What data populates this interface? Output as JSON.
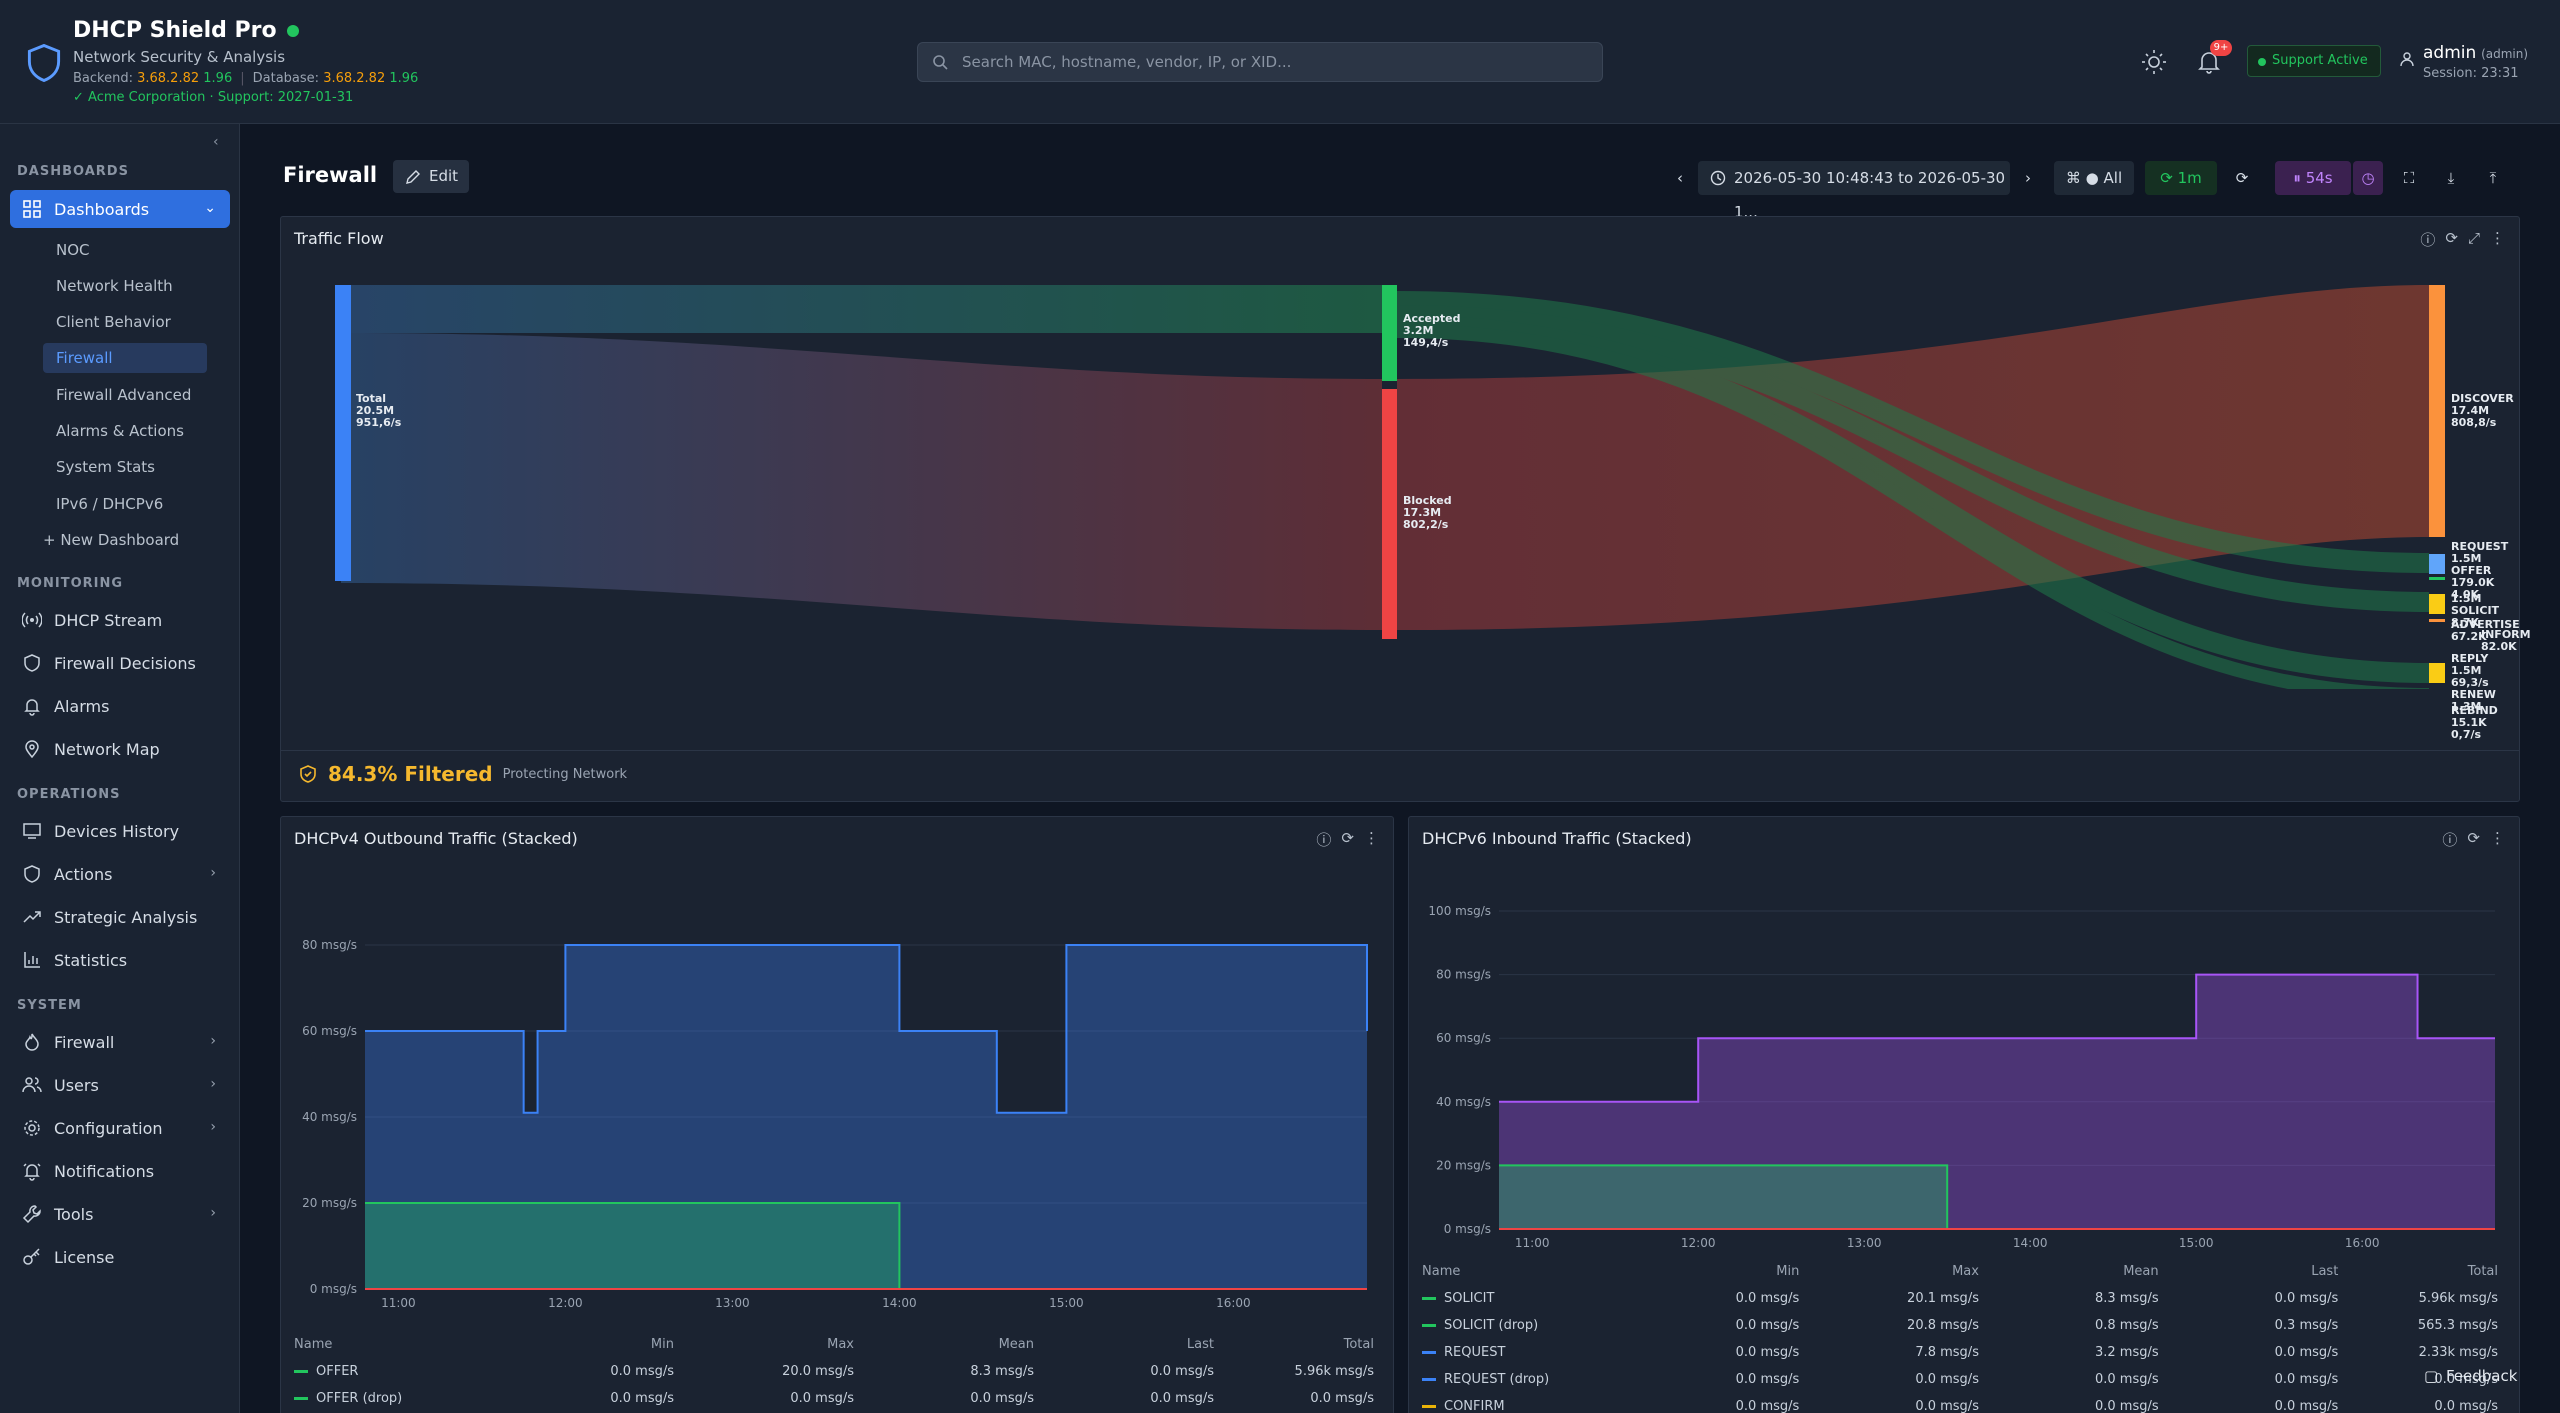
{
  "app": {
    "title": "DHCP Shield Pro",
    "subtitle": "Network Security & Analysis",
    "backend_label": "Backend:",
    "backend_ver": "3.68.2.82",
    "backend_build": "1.96",
    "db_label": "Database:",
    "db_ver": "3.68.2.82",
    "db_build": "1.96",
    "org": "✓ Acme Corporation · Support: 2027-01-31"
  },
  "search": {
    "placeholder": "Search MAC, hostname, vendor, IP, or XID..."
  },
  "notifications": {
    "badge": "9+"
  },
  "support": {
    "label": "Support Active"
  },
  "user": {
    "name": "admin",
    "role": "(admin)",
    "session": "Session: 23:31"
  },
  "sidebar": {
    "dashboards_header": "DASHBOARDS",
    "dashboards": "Dashboards",
    "subitems": [
      "NOC",
      "Network Health",
      "Client Behavior",
      "Firewall",
      "Firewall Advanced",
      "Alarms & Actions",
      "System Stats",
      "IPv6 / DHCPv6",
      "+ New Dashboard"
    ],
    "monitoring_header": "MONITORING",
    "monitoring": [
      "DHCP Stream",
      "Firewall Decisions",
      "Alarms",
      "Network Map"
    ],
    "operations_header": "OPERATIONS",
    "operations": [
      "Devices History",
      "Actions",
      "Strategic Analysis",
      "Statistics"
    ],
    "system_header": "SYSTEM",
    "system": [
      "Firewall",
      "Users",
      "Configuration",
      "Notifications",
      "Tools",
      "License"
    ]
  },
  "header": {
    "title": "Firewall",
    "edit": "Edit",
    "time_range": "2026-05-30 10:48:43 to 2026-05-30 1...",
    "filter": "All",
    "refresh": "1m",
    "countdown": "54s"
  },
  "traffic_flow": {
    "title": "Traffic Flow",
    "filtered": "84.3% Filtered",
    "filtered_note": "Protecting Network",
    "nodes": [
      {
        "name": "Total",
        "total": "20.5M",
        "rate": "951,6/s"
      },
      {
        "name": "Accepted",
        "total": "3.2M",
        "rate": "149,4/s"
      },
      {
        "name": "Blocked",
        "total": "17.3M",
        "rate": "802,2/s"
      },
      {
        "name": "DISCOVER",
        "total": "17.4M",
        "rate": "808,8/s"
      },
      {
        "name": "REQUEST",
        "total": "1.5M"
      },
      {
        "name": "OFFER",
        "total": "179.0K"
      },
      {
        "name": "SOLICIT",
        "total": "1.5M"
      },
      {
        "name": "ADVERTISE"
      },
      {
        "name": "INFORM"
      },
      {
        "name": "REPLY",
        "total": "1.5M"
      },
      {
        "name": "RENEW",
        "total": "1.3M"
      },
      {
        "name": "REBIND",
        "total": "15.1K",
        "rate": "0,7/s"
      }
    ],
    "overlap_text": [
      "4.0K",
      "8.7K",
      "67.2K",
      "82.0K",
      "69,3/s"
    ]
  },
  "chart_data": [
    {
      "type": "area",
      "title": "DHCPv4 Outbound Traffic (Stacked)",
      "ylabel": "",
      "ylim": [
        0,
        80
      ],
      "y_ticks": [
        "0 msg/s",
        "20 msg/s",
        "40 msg/s",
        "60 msg/s",
        "80 msg/s"
      ],
      "x_ticks": [
        "11:00",
        "12:00",
        "13:00",
        "14:00",
        "15:00",
        "16:00"
      ],
      "x": [
        "10:48",
        "11:40",
        "11:45",
        "11:50",
        "12:00",
        "13:20",
        "14:00",
        "14:30",
        "14:35",
        "15:00",
        "16:20",
        "16:48"
      ],
      "series": [
        {
          "name": "OFFER",
          "values": [
            20,
            20,
            20,
            20,
            20,
            20,
            0,
            0,
            0,
            0,
            0,
            0
          ]
        },
        {
          "name": "Total stacked",
          "values": [
            60,
            60,
            41,
            60,
            80,
            80,
            60,
            60,
            41,
            80,
            80,
            60
          ]
        }
      ],
      "legend": {
        "columns": [
          "Name",
          "Min",
          "Max",
          "Mean",
          "Last",
          "Total"
        ],
        "rows": [
          [
            "OFFER",
            "0.0 msg/s",
            "20.0 msg/s",
            "8.3 msg/s",
            "0.0 msg/s",
            "5.96k msg/s"
          ],
          [
            "OFFER (drop)",
            "0.0 msg/s",
            "0.0 msg/s",
            "0.0 msg/s",
            "0.0 msg/s",
            "0.0 msg/s"
          ]
        ]
      },
      "colors": {
        "offer": "#22c55e",
        "total": "#3b82f6"
      }
    },
    {
      "type": "area",
      "title": "DHCPv6 Inbound Traffic (Stacked)",
      "ylabel": "",
      "ylim": [
        0,
        100
      ],
      "y_ticks": [
        "0 msg/s",
        "20 msg/s",
        "40 msg/s",
        "60 msg/s",
        "80 msg/s",
        "100 msg/s"
      ],
      "x_ticks": [
        "11:00",
        "12:00",
        "13:00",
        "14:00",
        "15:00",
        "16:00"
      ],
      "x": [
        "10:48",
        "11:10",
        "11:30",
        "12:00",
        "13:30",
        "14:30",
        "15:00",
        "16:20",
        "16:48"
      ],
      "series": [
        {
          "name": "SOLICIT",
          "values": [
            20,
            20,
            20,
            20,
            0,
            0,
            0,
            0,
            0
          ]
        },
        {
          "name": "Total stacked",
          "values": [
            40,
            40,
            40,
            60,
            60,
            60,
            80,
            60,
            60
          ]
        }
      ],
      "legend": {
        "columns": [
          "Name",
          "Min",
          "Max",
          "Mean",
          "Last",
          "Total"
        ],
        "rows": [
          [
            "SOLICIT",
            "0.0 msg/s",
            "20.1 msg/s",
            "8.3 msg/s",
            "0.0 msg/s",
            "5.96k msg/s"
          ],
          [
            "SOLICIT (drop)",
            "0.0 msg/s",
            "20.8 msg/s",
            "0.8 msg/s",
            "0.3 msg/s",
            "565.3 msg/s"
          ],
          [
            "REQUEST",
            "0.0 msg/s",
            "7.8 msg/s",
            "3.2 msg/s",
            "0.0 msg/s",
            "2.33k msg/s"
          ],
          [
            "REQUEST (drop)",
            "0.0 msg/s",
            "0.0 msg/s",
            "0.0 msg/s",
            "0.0 msg/s",
            "0.0 msg/s"
          ],
          [
            "CONFIRM",
            "0.0 msg/s",
            "0.0 msg/s",
            "0.0 msg/s",
            "0.0 msg/s",
            "0.0 msg/s"
          ]
        ]
      },
      "colors": {
        "solicit": "#22c55e",
        "total": "#a855f7"
      }
    }
  ],
  "feedback": "Feedback"
}
